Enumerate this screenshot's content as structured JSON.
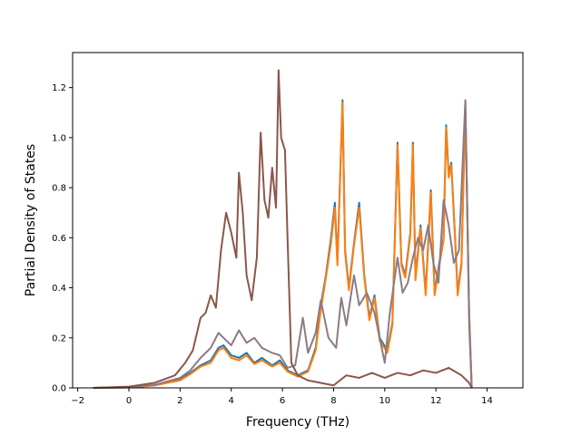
{
  "chart_data": {
    "type": "line",
    "title": "",
    "xlabel": "Frequency (THz)",
    "ylabel": "Partial Density of States",
    "xlim": [
      -2.2,
      15.4
    ],
    "ylim": [
      0.0,
      1.34
    ],
    "xticks": [
      -2,
      0,
      2,
      4,
      6,
      8,
      10,
      12,
      14
    ],
    "yticks": [
      0.0,
      0.2,
      0.4,
      0.6,
      0.8,
      1.0,
      1.2
    ],
    "xtick_labels": [
      "−2",
      "0",
      "2",
      "4",
      "6",
      "8",
      "10",
      "12",
      "14"
    ],
    "ytick_labels": [
      "0.0",
      "0.2",
      "0.4",
      "0.6",
      "0.8",
      "1.0",
      "1.2"
    ],
    "grid": false,
    "legend": "none",
    "series": [
      {
        "color": "#1f77b4",
        "points": [
          [
            -1.4,
            0
          ],
          [
            0,
            0.002
          ],
          [
            1,
            0.01
          ],
          [
            2,
            0.035
          ],
          [
            2.4,
            0.06
          ],
          [
            2.8,
            0.09
          ],
          [
            3.2,
            0.11
          ],
          [
            3.5,
            0.16
          ],
          [
            3.7,
            0.17
          ],
          [
            4,
            0.13
          ],
          [
            4.3,
            0.12
          ],
          [
            4.6,
            0.14
          ],
          [
            4.9,
            0.1
          ],
          [
            5.2,
            0.12
          ],
          [
            5.6,
            0.09
          ],
          [
            5.9,
            0.11
          ],
          [
            6.2,
            0.07
          ],
          [
            6.6,
            0.05
          ],
          [
            7,
            0.07
          ],
          [
            7.3,
            0.16
          ],
          [
            7.5,
            0.33
          ],
          [
            7.7,
            0.45
          ],
          [
            7.9,
            0.6
          ],
          [
            8.05,
            0.74
          ],
          [
            8.15,
            0.5
          ],
          [
            8.35,
            1.15
          ],
          [
            8.45,
            0.55
          ],
          [
            8.6,
            0.4
          ],
          [
            8.8,
            0.58
          ],
          [
            9,
            0.74
          ],
          [
            9.2,
            0.45
          ],
          [
            9.4,
            0.28
          ],
          [
            9.6,
            0.37
          ],
          [
            9.8,
            0.2
          ],
          [
            10.1,
            0.15
          ],
          [
            10.3,
            0.26
          ],
          [
            10.5,
            0.98
          ],
          [
            10.65,
            0.5
          ],
          [
            10.8,
            0.45
          ],
          [
            11,
            0.62
          ],
          [
            11.1,
            0.98
          ],
          [
            11.2,
            0.44
          ],
          [
            11.4,
            0.65
          ],
          [
            11.6,
            0.38
          ],
          [
            11.8,
            0.79
          ],
          [
            11.95,
            0.38
          ],
          [
            12.1,
            0.48
          ],
          [
            12.3,
            0.6
          ],
          [
            12.4,
            1.05
          ],
          [
            12.5,
            0.85
          ],
          [
            12.6,
            0.9
          ],
          [
            12.75,
            0.6
          ],
          [
            12.85,
            0.38
          ],
          [
            13.0,
            0.5
          ],
          [
            13.15,
            1.14
          ],
          [
            13.3,
            0.3
          ],
          [
            13.4,
            0
          ]
        ]
      },
      {
        "color": "#ff7f0e",
        "points": [
          [
            -1.4,
            0
          ],
          [
            0,
            0.002
          ],
          [
            1,
            0.01
          ],
          [
            2,
            0.03
          ],
          [
            2.4,
            0.055
          ],
          [
            2.8,
            0.085
          ],
          [
            3.2,
            0.1
          ],
          [
            3.5,
            0.15
          ],
          [
            3.7,
            0.16
          ],
          [
            4,
            0.12
          ],
          [
            4.3,
            0.11
          ],
          [
            4.6,
            0.13
          ],
          [
            4.9,
            0.095
          ],
          [
            5.2,
            0.11
          ],
          [
            5.6,
            0.085
          ],
          [
            5.9,
            0.1
          ],
          [
            6.2,
            0.065
          ],
          [
            6.6,
            0.045
          ],
          [
            7,
            0.065
          ],
          [
            7.3,
            0.15
          ],
          [
            7.5,
            0.31
          ],
          [
            7.7,
            0.44
          ],
          [
            7.9,
            0.58
          ],
          [
            8.05,
            0.72
          ],
          [
            8.15,
            0.49
          ],
          [
            8.35,
            1.14
          ],
          [
            8.45,
            0.54
          ],
          [
            8.6,
            0.39
          ],
          [
            8.8,
            0.57
          ],
          [
            9,
            0.72
          ],
          [
            9.2,
            0.44
          ],
          [
            9.4,
            0.27
          ],
          [
            9.6,
            0.36
          ],
          [
            9.8,
            0.19
          ],
          [
            10.1,
            0.14
          ],
          [
            10.3,
            0.25
          ],
          [
            10.5,
            0.97
          ],
          [
            10.65,
            0.49
          ],
          [
            10.8,
            0.44
          ],
          [
            11,
            0.61
          ],
          [
            11.1,
            0.97
          ],
          [
            11.2,
            0.43
          ],
          [
            11.4,
            0.64
          ],
          [
            11.6,
            0.37
          ],
          [
            11.8,
            0.78
          ],
          [
            11.95,
            0.37
          ],
          [
            12.1,
            0.47
          ],
          [
            12.3,
            0.59
          ],
          [
            12.4,
            1.04
          ],
          [
            12.5,
            0.84
          ],
          [
            12.6,
            0.89
          ],
          [
            12.75,
            0.59
          ],
          [
            12.85,
            0.37
          ],
          [
            13.0,
            0.49
          ],
          [
            13.15,
            1.13
          ],
          [
            13.3,
            0.29
          ],
          [
            13.4,
            0
          ]
        ]
      },
      {
        "color": "#8c7a85",
        "points": [
          [
            -1.4,
            0
          ],
          [
            0,
            0.002
          ],
          [
            1,
            0.012
          ],
          [
            2,
            0.04
          ],
          [
            2.4,
            0.07
          ],
          [
            2.8,
            0.12
          ],
          [
            3.2,
            0.16
          ],
          [
            3.5,
            0.22
          ],
          [
            3.7,
            0.2
          ],
          [
            4,
            0.17
          ],
          [
            4.3,
            0.23
          ],
          [
            4.6,
            0.18
          ],
          [
            4.9,
            0.2
          ],
          [
            5.2,
            0.16
          ],
          [
            5.6,
            0.14
          ],
          [
            5.9,
            0.13
          ],
          [
            6.2,
            0.08
          ],
          [
            6.5,
            0.09
          ],
          [
            6.8,
            0.28
          ],
          [
            7.0,
            0.14
          ],
          [
            7.3,
            0.22
          ],
          [
            7.5,
            0.35
          ],
          [
            7.8,
            0.2
          ],
          [
            8.1,
            0.16
          ],
          [
            8.3,
            0.36
          ],
          [
            8.5,
            0.25
          ],
          [
            8.8,
            0.45
          ],
          [
            9.0,
            0.33
          ],
          [
            9.3,
            0.38
          ],
          [
            9.6,
            0.3
          ],
          [
            9.8,
            0.2
          ],
          [
            10.0,
            0.1
          ],
          [
            10.2,
            0.3
          ],
          [
            10.5,
            0.52
          ],
          [
            10.7,
            0.38
          ],
          [
            10.9,
            0.42
          ],
          [
            11.1,
            0.52
          ],
          [
            11.3,
            0.6
          ],
          [
            11.5,
            0.55
          ],
          [
            11.7,
            0.65
          ],
          [
            11.9,
            0.5
          ],
          [
            12.1,
            0.42
          ],
          [
            12.3,
            0.75
          ],
          [
            12.5,
            0.65
          ],
          [
            12.7,
            0.5
          ],
          [
            12.9,
            0.55
          ],
          [
            13.15,
            1.15
          ],
          [
            13.3,
            0.25
          ],
          [
            13.4,
            0
          ]
        ]
      },
      {
        "color": "#8c564b",
        "points": [
          [
            -1.4,
            0
          ],
          [
            0,
            0.005
          ],
          [
            1,
            0.02
          ],
          [
            1.8,
            0.05
          ],
          [
            2.2,
            0.1
          ],
          [
            2.5,
            0.15
          ],
          [
            2.8,
            0.28
          ],
          [
            3.0,
            0.3
          ],
          [
            3.2,
            0.37
          ],
          [
            3.4,
            0.32
          ],
          [
            3.6,
            0.55
          ],
          [
            3.8,
            0.7
          ],
          [
            4.0,
            0.62
          ],
          [
            4.2,
            0.52
          ],
          [
            4.3,
            0.86
          ],
          [
            4.45,
            0.7
          ],
          [
            4.6,
            0.45
          ],
          [
            4.8,
            0.35
          ],
          [
            5.0,
            0.52
          ],
          [
            5.15,
            1.02
          ],
          [
            5.3,
            0.75
          ],
          [
            5.45,
            0.68
          ],
          [
            5.6,
            0.88
          ],
          [
            5.75,
            0.72
          ],
          [
            5.85,
            1.27
          ],
          [
            5.95,
            1.0
          ],
          [
            6.1,
            0.95
          ],
          [
            6.2,
            0.6
          ],
          [
            6.35,
            0.1
          ],
          [
            6.6,
            0.05
          ],
          [
            7.0,
            0.03
          ],
          [
            7.5,
            0.02
          ],
          [
            8.0,
            0.01
          ],
          [
            8.5,
            0.05
          ],
          [
            9.0,
            0.04
          ],
          [
            9.5,
            0.06
          ],
          [
            10.0,
            0.04
          ],
          [
            10.5,
            0.06
          ],
          [
            11.0,
            0.05
          ],
          [
            11.5,
            0.07
          ],
          [
            12.0,
            0.06
          ],
          [
            12.5,
            0.08
          ],
          [
            13.0,
            0.05
          ],
          [
            13.3,
            0.02
          ],
          [
            13.4,
            0
          ]
        ]
      }
    ]
  }
}
